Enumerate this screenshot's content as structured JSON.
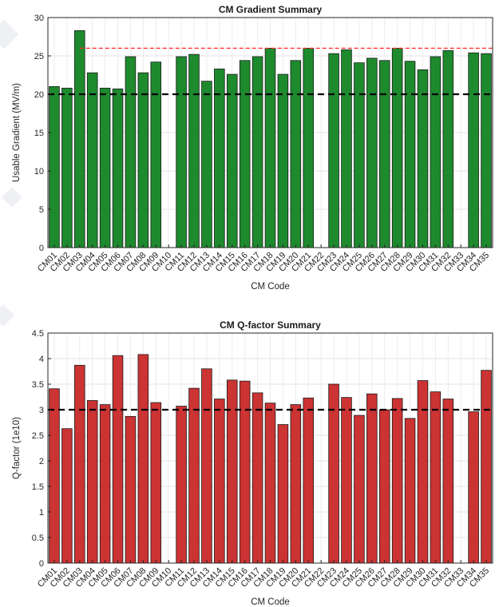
{
  "chart_data": [
    {
      "type": "bar",
      "title": "CM Gradient Summary",
      "xlabel": "CM Code",
      "ylabel": "Usable Gradient (MV/m)",
      "ylim": [
        0,
        30
      ],
      "yticks": [
        0,
        5,
        10,
        15,
        20,
        25,
        30
      ],
      "grid": true,
      "bar_color": "#1e8a2e",
      "categories": [
        "CM01",
        "CM02",
        "CM03",
        "CM04",
        "CM05",
        "CM06",
        "CM07",
        "CM08",
        "CM09",
        "CM10",
        "CM11",
        "CM12",
        "CM13",
        "CM14",
        "CM15",
        "CM16",
        "CM17",
        "CM18",
        "CM19",
        "CM20",
        "CM21",
        "CM22",
        "CM23",
        "CM24",
        "CM25",
        "CM26",
        "CM27",
        "CM28",
        "CM29",
        "CM30",
        "CM31",
        "CM32",
        "CM33",
        "CM34",
        "CM35"
      ],
      "values": [
        21.0,
        20.8,
        28.3,
        22.8,
        20.8,
        20.7,
        24.9,
        22.8,
        24.2,
        null,
        24.9,
        25.2,
        21.7,
        23.3,
        22.6,
        24.4,
        24.9,
        26.0,
        22.6,
        24.4,
        26.0,
        null,
        25.3,
        25.8,
        24.1,
        24.7,
        24.4,
        26.0,
        24.3,
        23.2,
        24.9,
        25.7,
        null,
        25.4,
        25.3
      ],
      "reference_lines": [
        {
          "value": 20,
          "style": "dashed",
          "color": "#000000"
        },
        {
          "value": 26,
          "style": "dashed",
          "color": "#ff2a2a",
          "x_from_category": "CM03"
        }
      ]
    },
    {
      "type": "bar",
      "title": "CM Q-factor Summary",
      "xlabel": "CM Code",
      "ylabel": "Q-factor (1e10)",
      "ylim": [
        0,
        4.5
      ],
      "yticks": [
        0,
        0.5,
        1,
        1.5,
        2,
        2.5,
        3,
        3.5,
        4,
        4.5
      ],
      "grid": true,
      "bar_color": "#cc3333",
      "categories": [
        "CM01",
        "CM02",
        "CM03",
        "CM04",
        "CM05",
        "CM06",
        "CM07",
        "CM08",
        "CM09",
        "CM10",
        "CM11",
        "CM12",
        "CM13",
        "CM14",
        "CM15",
        "CM16",
        "CM17",
        "CM18",
        "CM19",
        "CM20",
        "CM21",
        "CM22",
        "CM23",
        "CM24",
        "CM25",
        "CM26",
        "CM27",
        "CM28",
        "CM29",
        "CM30",
        "CM31",
        "CM32",
        "CM33",
        "CM34",
        "CM35"
      ],
      "values": [
        3.41,
        2.63,
        3.87,
        3.18,
        3.1,
        4.06,
        2.87,
        4.08,
        3.14,
        null,
        3.07,
        3.42,
        3.8,
        3.21,
        3.58,
        3.56,
        3.33,
        3.13,
        2.71,
        3.1,
        3.23,
        null,
        3.5,
        3.24,
        2.89,
        3.31,
        3.0,
        3.22,
        2.83,
        3.57,
        3.35,
        3.21,
        null,
        2.96,
        3.77
      ],
      "reference_lines": [
        {
          "value": 3,
          "style": "dashed",
          "color": "#000000"
        }
      ]
    }
  ]
}
